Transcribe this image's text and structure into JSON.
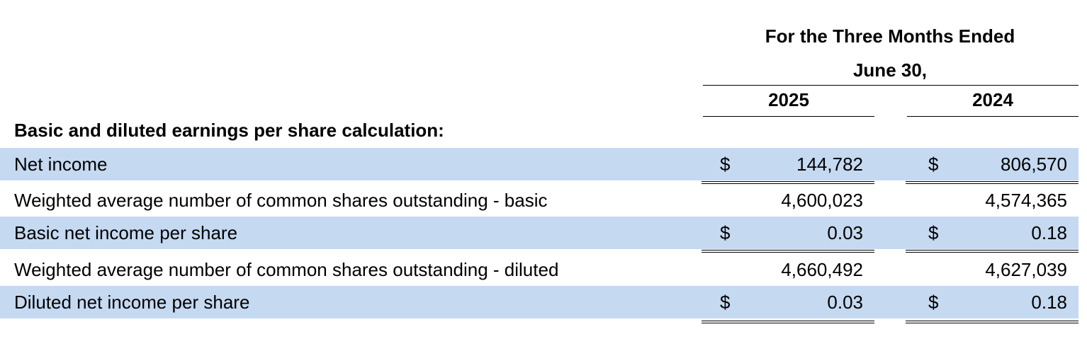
{
  "header": {
    "title": "For the Three Months Ended",
    "subtitle": "June 30,",
    "years": [
      "2025",
      "2024"
    ]
  },
  "section_label": "Basic and diluted earnings per share calculation:",
  "rows": [
    {
      "label": "Net income",
      "currency_a": "$",
      "value_a": "144,782",
      "currency_b": "$",
      "value_b": "806,570"
    },
    {
      "label": "Weighted average number of common shares outstanding - basic",
      "currency_a": "",
      "value_a": "4,600,023",
      "currency_b": "",
      "value_b": "4,574,365"
    },
    {
      "label": "Basic net income per share",
      "currency_a": "$",
      "value_a": "0.03",
      "currency_b": "$",
      "value_b": "0.18"
    },
    {
      "label": "Weighted average number of common shares outstanding - diluted",
      "currency_a": "",
      "value_a": "4,660,492",
      "currency_b": "",
      "value_b": "4,627,039"
    },
    {
      "label": "Diluted net income per share",
      "currency_a": "$",
      "value_a": "0.03",
      "currency_b": "$",
      "value_b": "0.18"
    }
  ],
  "colors": {
    "row_shading": "#c5d9f1"
  }
}
